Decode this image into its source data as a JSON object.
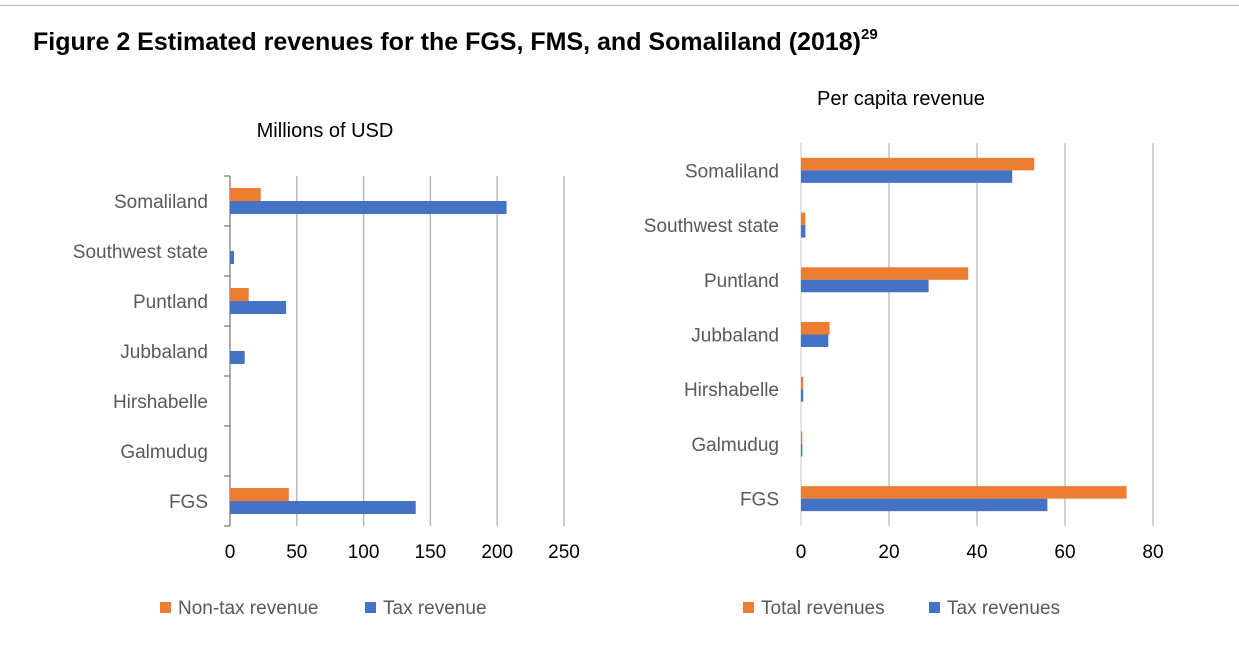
{
  "figure": {
    "title": "Figure 2 Estimated revenues for the FGS, FMS, and Somaliland (2018)",
    "footnote": "29"
  },
  "colors": {
    "orange": "#ED7D31",
    "blue": "#4472C4",
    "grid": "#b4b4b4",
    "text": "#595959"
  },
  "chart_data": [
    {
      "type": "bar",
      "orientation": "horizontal",
      "title": "Millions of USD",
      "categories": [
        "Somaliland",
        "Southwest state",
        "Puntland",
        "Jubbaland",
        "Hirshabelle",
        "Galmudug",
        "FGS"
      ],
      "series": [
        {
          "name": "Non-tax revenue",
          "color": "#ED7D31",
          "values": [
            23,
            0,
            14,
            0,
            0,
            0,
            44
          ]
        },
        {
          "name": "Tax revenue",
          "color": "#4472C4",
          "values": [
            207,
            3,
            42,
            11,
            0,
            0,
            139
          ]
        }
      ],
      "xlim": [
        0,
        250
      ],
      "ticks": [
        0,
        50,
        100,
        150,
        200,
        250
      ],
      "legend_position": "bottom"
    },
    {
      "type": "bar",
      "orientation": "horizontal",
      "title": "Per capita revenue",
      "categories": [
        "Somaliland",
        "Southwest state",
        "Puntland",
        "Jubbaland",
        "Hirshabelle",
        "Galmudug",
        "FGS"
      ],
      "series": [
        {
          "name": "Total revenues",
          "color": "#ED7D31",
          "values": [
            53,
            1,
            38,
            6.5,
            0.5,
            0.3,
            74
          ]
        },
        {
          "name": "Tax revenues",
          "color": "#4472C4",
          "values": [
            48,
            1,
            29,
            6.2,
            0.5,
            0.3,
            56
          ]
        }
      ],
      "xlim": [
        0,
        80
      ],
      "ticks": [
        0,
        20,
        40,
        60,
        80
      ],
      "legend_position": "bottom"
    }
  ]
}
